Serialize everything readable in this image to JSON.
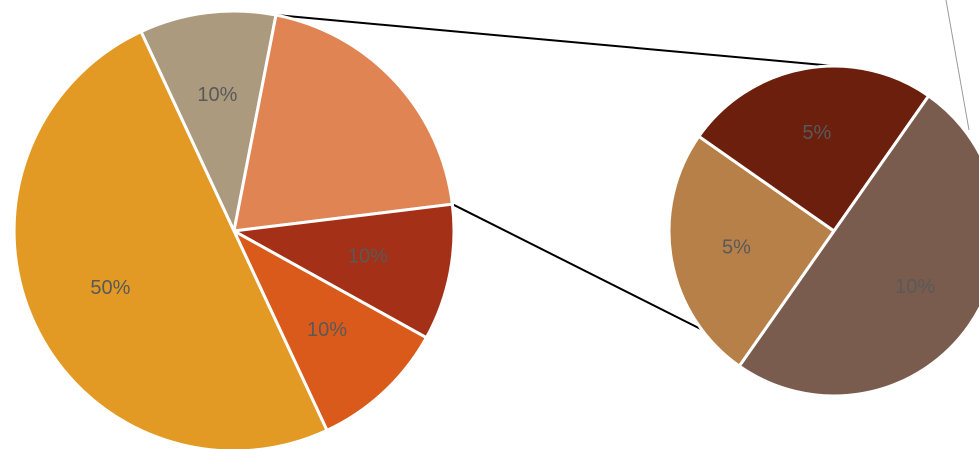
{
  "chart_data": {
    "type": "pie",
    "subtype": "pie-of-pie",
    "main_pie": {
      "slices": [
        {
          "value": 10,
          "label": "10%",
          "color": "#AB9A7E"
        },
        {
          "value": 20,
          "label": "",
          "color": "#E08454",
          "is_other": true
        },
        {
          "value": 10,
          "label": "10%",
          "color": "#A33017"
        },
        {
          "value": 10,
          "label": "10%",
          "color": "#D95A1A"
        },
        {
          "value": 50,
          "label": "50%",
          "color": "#E29A24"
        }
      ]
    },
    "secondary_pie": {
      "slices": [
        {
          "value": 5,
          "label": "5%",
          "color": "#B88049"
        },
        {
          "value": 5,
          "label": "5%",
          "color": "#6B1F0C"
        },
        {
          "value": 10,
          "label": "10%",
          "color": "#7A5C4F"
        }
      ]
    },
    "label_color": "#595959",
    "title": "",
    "legend": "none"
  }
}
